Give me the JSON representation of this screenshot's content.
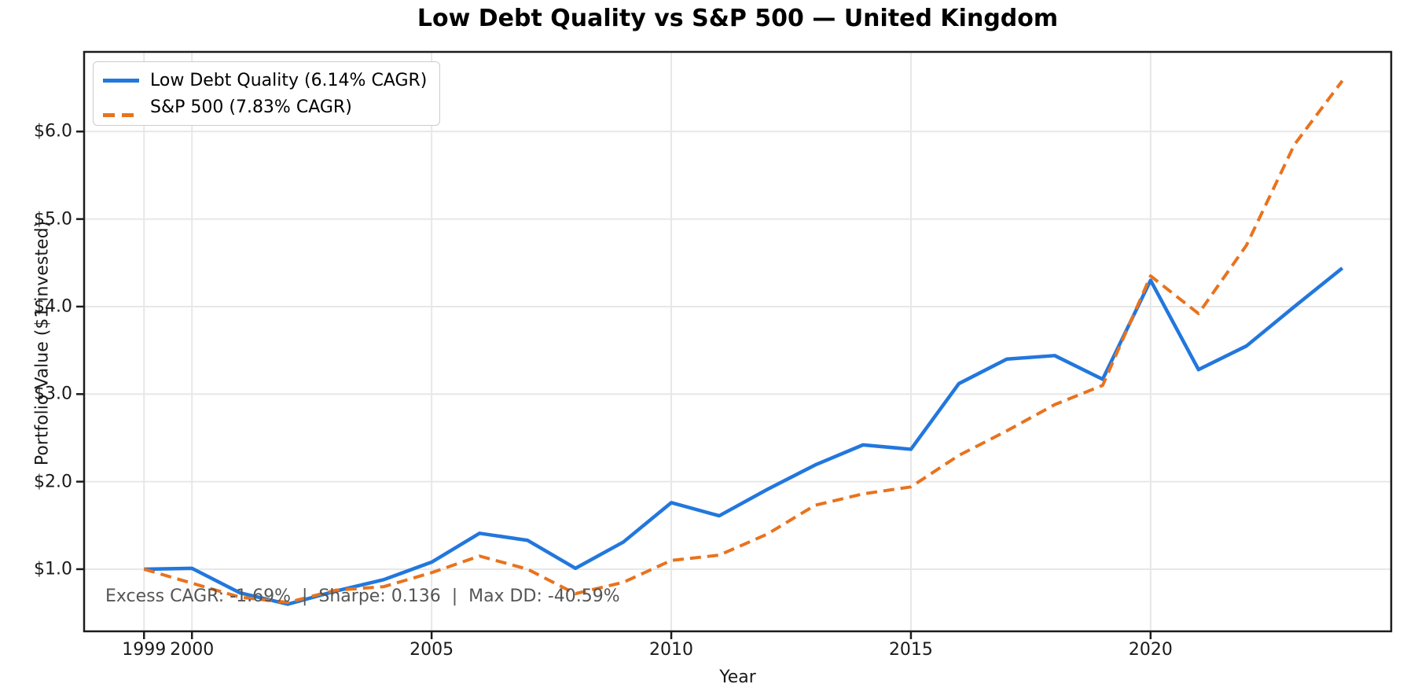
{
  "title": "Low Debt Quality vs S&P 500 — United Kingdom",
  "annotation": "Excess CAGR: -1.69%  |  Sharpe: 0.136  |  Max DD: -40.59%",
  "colors": {
    "low_debt_quality": "#2277dd",
    "sp500": "#e8731e",
    "grid": "#e7e7e7",
    "spine": "#1c1c1c",
    "annotation_text": "#555555"
  },
  "chart_data": {
    "type": "line",
    "title": "Low Debt Quality vs S&P 500 — United Kingdom",
    "xlabel": "Year",
    "ylabel": "Portfolio Value ($1 invested)",
    "xlim": [
      1997.75,
      2025.02
    ],
    "ylim": [
      0.29,
      6.91
    ],
    "grid": true,
    "legend_position": "upper left",
    "x": [
      1999,
      2000,
      2001,
      2002,
      2003,
      2004,
      2005,
      2006,
      2007,
      2008,
      2009,
      2010,
      2011,
      2012,
      2013,
      2014,
      2015,
      2016,
      2017,
      2018,
      2019,
      2020,
      2021,
      2022,
      2023,
      2024
    ],
    "series": [
      {
        "name": "Low Debt Quality (6.14% CAGR)",
        "color": "#2277dd",
        "style": "solid",
        "values": [
          1.0,
          1.01,
          0.73,
          0.6,
          0.75,
          0.88,
          1.08,
          1.41,
          1.33,
          1.01,
          1.31,
          1.76,
          1.61,
          1.91,
          2.19,
          2.42,
          2.37,
          3.12,
          3.4,
          3.44,
          3.17,
          4.3,
          3.28,
          3.55,
          4.0,
          4.44
        ]
      },
      {
        "name": "S&P 500 (7.83% CAGR)",
        "color": "#e8731e",
        "style": "dashed",
        "values": [
          1.0,
          0.84,
          0.68,
          0.62,
          0.76,
          0.8,
          0.96,
          1.15,
          1.0,
          0.72,
          0.85,
          1.1,
          1.16,
          1.4,
          1.73,
          1.86,
          1.94,
          2.3,
          2.58,
          2.88,
          3.1,
          4.35,
          3.92,
          4.7,
          5.85,
          6.58
        ]
      }
    ],
    "xticks": {
      "values": [
        1999,
        2000,
        2005,
        2010,
        2015,
        2020
      ],
      "labels": [
        "1999",
        "2000",
        "2005",
        "2010",
        "2015",
        "2020"
      ]
    },
    "yticks": {
      "values": [
        1,
        2,
        3,
        4,
        5,
        6
      ],
      "labels": [
        "$1.0",
        "$2.0",
        "$3.0",
        "$4.0",
        "$5.0",
        "$6.0"
      ]
    },
    "stats_annotation": {
      "excess_cagr": "-1.69%",
      "sharpe": "0.136",
      "max_dd": "-40.59%"
    }
  }
}
